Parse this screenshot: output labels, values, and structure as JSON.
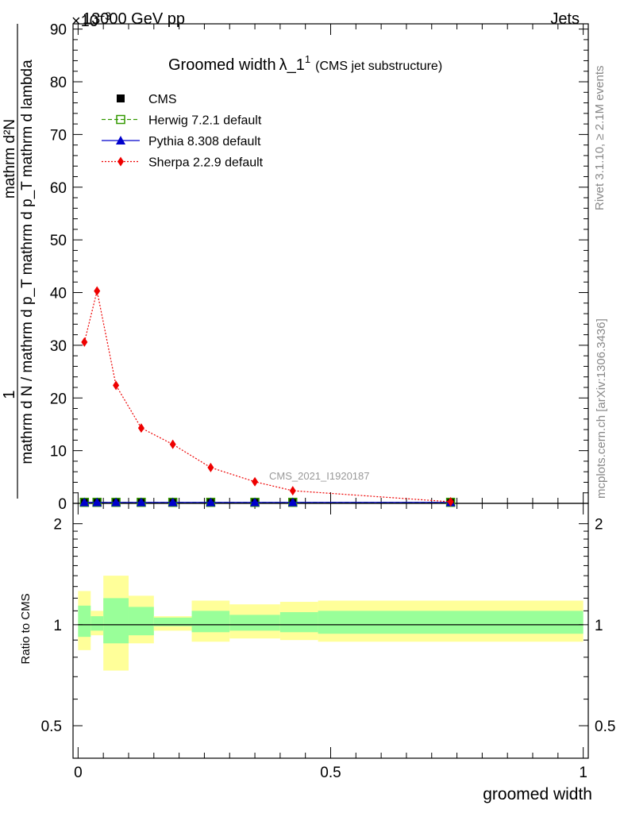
{
  "header": {
    "energy_label": "13000 GeV pp",
    "process_label": "Jets",
    "exponent_label": "×10",
    "exponent_sup": "−3"
  },
  "side": {
    "rivet_label": "Rivet 3.1.10, ≥ 2.1M events",
    "mcplots_label": "mcplots.cern.ch [arXiv:1306.3436]"
  },
  "chart_data": {
    "type": "line",
    "title": "Groomed width",
    "title_symbol": "λ_1",
    "title_sup": "1",
    "subtitle": "(CMS jet substructure)",
    "watermark": "CMS_2021_I1920187",
    "ylabel_main_top": "1",
    "ylabel_main_numerator": "mathrm d²N",
    "ylabel_main_denominator": "mathrm d N / mathrm d p_T mathrm d p_T mathrm d lambda",
    "ylabel_ratio": "Ratio to CMS",
    "xlabel": "groomed width",
    "xlim": [
      -0.01,
      1.01
    ],
    "ylim_main": [
      0,
      91
    ],
    "yticks_main": [
      "0",
      "10",
      "20",
      "30",
      "40",
      "50",
      "60",
      "70",
      "80",
      "90"
    ],
    "ylim_ratio": [
      0.4,
      2.3
    ],
    "yticks_ratio": [
      "0.5",
      "1",
      "2"
    ],
    "xticks": [
      "0",
      "0.5",
      "1"
    ],
    "ratio_log_scale": true,
    "legend_position": "top-left",
    "series": [
      {
        "name": "CMS",
        "color": "#000000",
        "marker": "square",
        "x": [
          0.0125,
          0.0375,
          0.075,
          0.125,
          0.1875,
          0.2625,
          0.35,
          0.425,
          0.7375
        ],
        "y": [
          0.2,
          0.2,
          0.2,
          0.2,
          0.2,
          0.2,
          0.2,
          0.2,
          0.2
        ]
      },
      {
        "name": "Herwig 7.2.1 default",
        "color": "#339900",
        "marker": "open-square",
        "dash": "dashed",
        "x": [
          0.0125,
          0.0375,
          0.075,
          0.125,
          0.1875,
          0.2625,
          0.35,
          0.425,
          0.7375
        ],
        "y": [
          0.2,
          0.2,
          0.2,
          0.2,
          0.2,
          0.2,
          0.2,
          0.2,
          0.2
        ]
      },
      {
        "name": "Pythia 8.308 default",
        "color": "#0000cc",
        "marker": "triangle",
        "dash": "solid",
        "x": [
          0.0125,
          0.0375,
          0.075,
          0.125,
          0.1875,
          0.2625,
          0.35,
          0.425,
          0.7375
        ],
        "y": [
          0.2,
          0.2,
          0.2,
          0.2,
          0.2,
          0.2,
          0.2,
          0.2,
          0.2
        ]
      },
      {
        "name": "Sherpa 2.2.9 default",
        "color": "#ee0000",
        "marker": "diamond",
        "dash": "dotted",
        "x": [
          0.0125,
          0.0375,
          0.075,
          0.125,
          0.1875,
          0.2625,
          0.35,
          0.425,
          0.7375
        ],
        "y": [
          30.6,
          40.3,
          22.4,
          14.3,
          11.2,
          6.8,
          4.1,
          2.4,
          0.3
        ]
      }
    ],
    "ratio_bands": [
      {
        "x0": 0.0,
        "x1": 0.025,
        "yellow": [
          0.84,
          1.26
        ],
        "green": [
          0.92,
          1.14
        ]
      },
      {
        "x0": 0.025,
        "x1": 0.05,
        "yellow": [
          0.93,
          1.1
        ],
        "green": [
          0.96,
          1.06
        ]
      },
      {
        "x0": 0.05,
        "x1": 0.1,
        "yellow": [
          0.73,
          1.4
        ],
        "green": [
          0.88,
          1.2
        ]
      },
      {
        "x0": 0.1,
        "x1": 0.15,
        "yellow": [
          0.88,
          1.22
        ],
        "green": [
          0.93,
          1.13
        ]
      },
      {
        "x0": 0.15,
        "x1": 0.225,
        "yellow": [
          0.96,
          1.06
        ],
        "green": [
          0.99,
          1.05
        ]
      },
      {
        "x0": 0.225,
        "x1": 0.3,
        "yellow": [
          0.89,
          1.18
        ],
        "green": [
          0.95,
          1.1
        ]
      },
      {
        "x0": 0.3,
        "x1": 0.4,
        "yellow": [
          0.91,
          1.15
        ],
        "green": [
          0.96,
          1.07
        ]
      },
      {
        "x0": 0.4,
        "x1": 0.475,
        "yellow": [
          0.9,
          1.17
        ],
        "green": [
          0.95,
          1.09
        ]
      },
      {
        "x0": 0.475,
        "x1": 1.0,
        "yellow": [
          0.89,
          1.18
        ],
        "green": [
          0.94,
          1.1
        ]
      }
    ],
    "ratio_reference": 1.0,
    "colors": {
      "band_yellow": "#ffff99",
      "band_green": "#99ff99"
    }
  }
}
